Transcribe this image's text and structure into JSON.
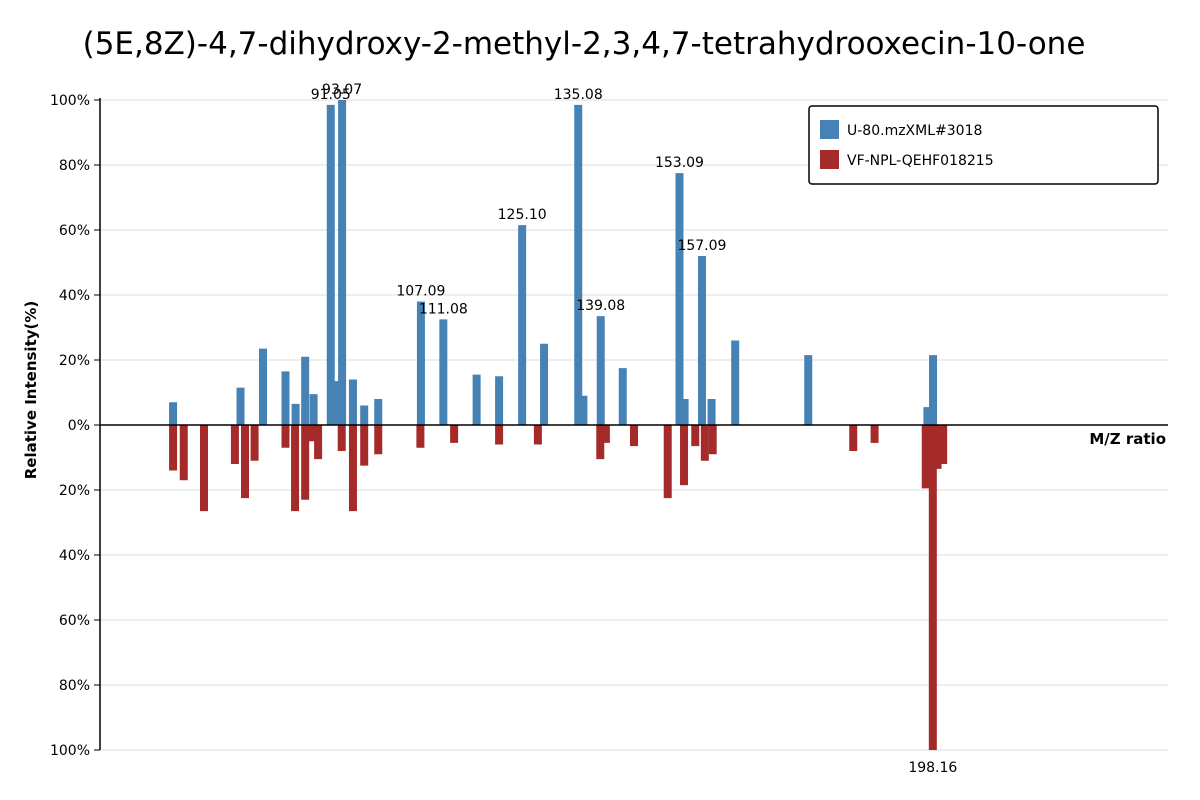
{
  "chart_data": {
    "type": "bar",
    "title": "(5E,8Z)-4,7-dihydroxy-2-methyl-2,3,4,7-tetrahydrooxecin-10-one",
    "xlabel": "M/Z ratio",
    "ylabel": "Relative Intensity(%)",
    "x_range": [
      50,
      240
    ],
    "y_range": [
      -100,
      100
    ],
    "y_ticks": [
      100,
      80,
      60,
      40,
      20,
      0,
      -20,
      -40,
      -60,
      -80,
      -100
    ],
    "y_tick_labels": [
      "100%",
      "80%",
      "60%",
      "40%",
      "20%",
      "0%",
      "20%",
      "40%",
      "60%",
      "80%",
      "100%"
    ],
    "grid": true,
    "legend_position": "top-right",
    "series": [
      {
        "name": "U-80.mzXML#3018",
        "color": "#4682b4",
        "direction": "up",
        "peaks": [
          {
            "mz": 63.0,
            "intensity": 7
          },
          {
            "mz": 75.0,
            "intensity": 11.5
          },
          {
            "mz": 79.0,
            "intensity": 23.5
          },
          {
            "mz": 83.0,
            "intensity": 16.5
          },
          {
            "mz": 84.8,
            "intensity": 6.5
          },
          {
            "mz": 86.5,
            "intensity": 21
          },
          {
            "mz": 88.0,
            "intensity": 9.5
          },
          {
            "mz": 91.05,
            "intensity": 98.5,
            "label": "91.05"
          },
          {
            "mz": 92.0,
            "intensity": 13.5
          },
          {
            "mz": 93.07,
            "intensity": 100,
            "label": "93.07"
          },
          {
            "mz": 95.0,
            "intensity": 14
          },
          {
            "mz": 97.0,
            "intensity": 6
          },
          {
            "mz": 99.5,
            "intensity": 8
          },
          {
            "mz": 107.09,
            "intensity": 38,
            "label": "107.09"
          },
          {
            "mz": 111.08,
            "intensity": 32.5,
            "label": "111.08"
          },
          {
            "mz": 117.0,
            "intensity": 15.5
          },
          {
            "mz": 121.0,
            "intensity": 15
          },
          {
            "mz": 125.1,
            "intensity": 61.5,
            "label": "125.10"
          },
          {
            "mz": 129.0,
            "intensity": 25
          },
          {
            "mz": 135.08,
            "intensity": 98.5,
            "label": "135.08"
          },
          {
            "mz": 136.0,
            "intensity": 9
          },
          {
            "mz": 139.08,
            "intensity": 33.5,
            "label": "139.08"
          },
          {
            "mz": 143.0,
            "intensity": 17.5
          },
          {
            "mz": 153.09,
            "intensity": 77.5,
            "label": "153.09"
          },
          {
            "mz": 154.0,
            "intensity": 8
          },
          {
            "mz": 157.09,
            "intensity": 52,
            "label": "157.09"
          },
          {
            "mz": 158.8,
            "intensity": 8
          },
          {
            "mz": 163.0,
            "intensity": 26
          },
          {
            "mz": 176.0,
            "intensity": 21.5
          },
          {
            "mz": 197.2,
            "intensity": 5.5
          },
          {
            "mz": 198.2,
            "intensity": 21.5
          }
        ]
      },
      {
        "name": "VF-NPL-QEHF018215",
        "color": "#a52a2a",
        "direction": "down",
        "peaks": [
          {
            "mz": 63.0,
            "intensity": 14
          },
          {
            "mz": 64.9,
            "intensity": 17
          },
          {
            "mz": 68.5,
            "intensity": 26.5
          },
          {
            "mz": 74.0,
            "intensity": 12
          },
          {
            "mz": 75.8,
            "intensity": 22.5
          },
          {
            "mz": 77.5,
            "intensity": 11
          },
          {
            "mz": 83.0,
            "intensity": 7
          },
          {
            "mz": 84.7,
            "intensity": 26.5
          },
          {
            "mz": 86.5,
            "intensity": 23
          },
          {
            "mz": 87.8,
            "intensity": 5
          },
          {
            "mz": 88.8,
            "intensity": 10.5
          },
          {
            "mz": 93.0,
            "intensity": 8
          },
          {
            "mz": 95.0,
            "intensity": 26.5
          },
          {
            "mz": 97.0,
            "intensity": 12.5
          },
          {
            "mz": 99.5,
            "intensity": 9
          },
          {
            "mz": 107.0,
            "intensity": 7
          },
          {
            "mz": 113.0,
            "intensity": 5.5
          },
          {
            "mz": 121.0,
            "intensity": 6
          },
          {
            "mz": 127.9,
            "intensity": 6
          },
          {
            "mz": 139.0,
            "intensity": 10.5
          },
          {
            "mz": 140.0,
            "intensity": 5.5
          },
          {
            "mz": 145.0,
            "intensity": 6.5
          },
          {
            "mz": 151.0,
            "intensity": 22.5
          },
          {
            "mz": 153.9,
            "intensity": 18.5
          },
          {
            "mz": 155.9,
            "intensity": 6.5
          },
          {
            "mz": 157.6,
            "intensity": 11
          },
          {
            "mz": 159.0,
            "intensity": 9
          },
          {
            "mz": 184.0,
            "intensity": 8
          },
          {
            "mz": 187.8,
            "intensity": 5.5
          },
          {
            "mz": 196.9,
            "intensity": 19.5
          },
          {
            "mz": 198.16,
            "intensity": 100,
            "label": "198.16"
          },
          {
            "mz": 199.0,
            "intensity": 13.5
          },
          {
            "mz": 200.0,
            "intensity": 12
          }
        ]
      }
    ]
  }
}
